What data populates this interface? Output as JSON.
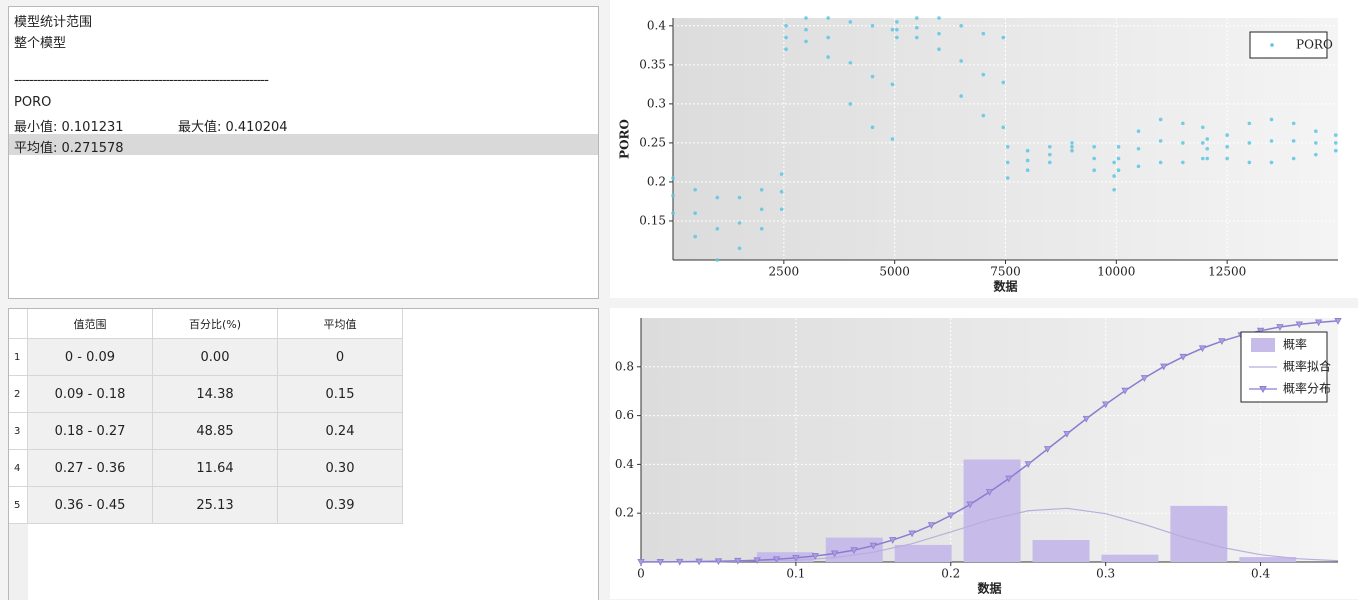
{
  "info": {
    "lines": [
      "模型统计范围",
      "整个模型"
    ],
    "separator": "-------------------------------------------------------------------",
    "property": "PORO",
    "min": "最小值: 0.101231",
    "max": "最大值: 0.410204",
    "mean": "平均值: 0.271578"
  },
  "table": {
    "headers": [
      "值范围",
      "百分比(%)",
      "平均值"
    ],
    "rows": [
      [
        "1",
        "0 - 0.09",
        "0.00",
        "0"
      ],
      [
        "2",
        "0.09 - 0.18",
        "14.38",
        "0.15"
      ],
      [
        "3",
        "0.18 - 0.27",
        "48.85",
        "0.24"
      ],
      [
        "4",
        "0.27 - 0.36",
        "11.64",
        "0.30"
      ],
      [
        "5",
        "0.36 - 0.45",
        "25.13",
        "0.39"
      ]
    ]
  },
  "chart_data": [
    {
      "type": "scatter",
      "xlabel": "数据",
      "ylabel": "PORO",
      "xlim": [
        0,
        15000
      ],
      "ylim": [
        0.1,
        0.41
      ],
      "xticks": [
        2500,
        5000,
        7500,
        10000,
        12500
      ],
      "yticks": [
        0.15,
        0.2,
        0.25,
        0.3,
        0.35,
        0.4
      ],
      "grid": true,
      "legend": "upper right",
      "series": [
        {
          "name": "PORO",
          "color": "#5bc5e3",
          "x": [
            0,
            0,
            0,
            500,
            500,
            500,
            1000,
            1000,
            1000,
            1500,
            1500,
            1500,
            2000,
            2000,
            2000,
            2450,
            2450,
            2450,
            2550,
            2550,
            2550,
            3000,
            3000,
            3000,
            3500,
            3500,
            3500,
            4000,
            4000,
            4000,
            4500,
            4500,
            4500,
            4950,
            4950,
            4950,
            5050,
            5050,
            5050,
            5500,
            5500,
            5500,
            6000,
            6000,
            6000,
            6500,
            6500,
            6500,
            7000,
            7000,
            7000,
            7450,
            7450,
            7450,
            7550,
            7550,
            7550,
            8000,
            8000,
            8000,
            8500,
            8500,
            8500,
            9000,
            9000,
            9000,
            9500,
            9500,
            9500,
            9950,
            9950,
            9950,
            10050,
            10050,
            10050,
            10500,
            10500,
            10500,
            11000,
            11000,
            11000,
            11500,
            11500,
            11500,
            11950,
            11950,
            11950,
            12050,
            12050,
            12050,
            12500,
            12500,
            12500,
            13000,
            13000,
            13000,
            13500,
            13500,
            13500,
            14000,
            14000,
            14000,
            14500,
            14500,
            14500,
            14950,
            14950,
            14950
          ],
          "values": [
            0.205,
            0.1825,
            0.16,
            0.19,
            0.16,
            0.13,
            0.18,
            0.14,
            0.1,
            0.18,
            0.1475,
            0.115,
            0.19,
            0.165,
            0.14,
            0.21,
            0.1875,
            0.165,
            0.4,
            0.385,
            0.37,
            0.41,
            0.395,
            0.38,
            0.41,
            0.385,
            0.36,
            0.405,
            0.3525,
            0.3,
            0.4,
            0.335,
            0.27,
            0.395,
            0.325,
            0.255,
            0.405,
            0.395,
            0.385,
            0.41,
            0.3975,
            0.385,
            0.41,
            0.39,
            0.37,
            0.4,
            0.355,
            0.31,
            0.39,
            0.3375,
            0.285,
            0.385,
            0.3275,
            0.27,
            0.245,
            0.225,
            0.205,
            0.24,
            0.2275,
            0.215,
            0.245,
            0.235,
            0.225,
            0.25,
            0.245,
            0.24,
            0.245,
            0.23,
            0.215,
            0.225,
            0.2075,
            0.19,
            0.245,
            0.23,
            0.215,
            0.265,
            0.2425,
            0.22,
            0.28,
            0.2525,
            0.225,
            0.275,
            0.25,
            0.225,
            0.27,
            0.25,
            0.23,
            0.255,
            0.2425,
            0.23,
            0.26,
            0.245,
            0.23,
            0.275,
            0.25,
            0.225,
            0.28,
            0.2525,
            0.225,
            0.275,
            0.2525,
            0.23,
            0.265,
            0.25,
            0.235,
            0.26,
            0.25,
            0.24
          ]
        }
      ]
    },
    {
      "type": "histogram",
      "xlabel": "数据",
      "xlim": [
        0,
        0.45
      ],
      "ylim": [
        0,
        1
      ],
      "xticks": [
        0,
        0.1,
        0.2,
        0.3,
        0.4
      ],
      "yticks": [
        0.2,
        0.4,
        0.6,
        0.8
      ],
      "grid": true,
      "legend": "upper right",
      "bins": [
        0.0735,
        0.118,
        0.1625,
        0.207,
        0.2515,
        0.296,
        0.3405,
        0.385,
        0.4295
      ],
      "series": [
        {
          "name": "概率",
          "color": "#c6bbe9",
          "values": [
            0.04,
            0.1,
            0.07,
            0.42,
            0.09,
            0.03,
            0.23,
            0.02
          ]
        },
        {
          "name": "概率拟合",
          "type": "line",
          "color": "#b9aedc",
          "x": [
            0,
            0.05,
            0.1,
            0.125,
            0.15,
            0.175,
            0.2,
            0.225,
            0.25,
            0.275,
            0.3,
            0.325,
            0.35,
            0.375,
            0.4,
            0.425,
            0.45
          ],
          "values": [
            0,
            0.0007,
            0.0072,
            0.018,
            0.04,
            0.075,
            0.123,
            0.173,
            0.21,
            0.22,
            0.198,
            0.154,
            0.103,
            0.06,
            0.03,
            0.013,
            0.005
          ]
        },
        {
          "name": "概率分布",
          "type": "line",
          "marker": "triangle-down",
          "color": "#8a7dd0",
          "x": [
            0,
            0.0125,
            0.025,
            0.0375,
            0.05,
            0.0625,
            0.075,
            0.0875,
            0.1,
            0.1125,
            0.125,
            0.1375,
            0.15,
            0.1625,
            0.175,
            0.1875,
            0.2,
            0.2125,
            0.225,
            0.2375,
            0.25,
            0.2625,
            0.275,
            0.2875,
            0.3,
            0.3125,
            0.325,
            0.3375,
            0.35,
            0.3625,
            0.375,
            0.3875,
            0.4,
            0.4125,
            0.425,
            0.4375,
            0.45
          ],
          "values": [
            0.0004,
            0.0006,
            0.0011,
            0.0018,
            0.003,
            0.0048,
            0.0073,
            0.0113,
            0.0168,
            0.0244,
            0.035,
            0.0485,
            0.0668,
            0.09,
            0.117,
            0.151,
            0.191,
            0.236,
            0.287,
            0.342,
            0.401,
            0.463,
            0.525,
            0.587,
            0.646,
            0.702,
            0.754,
            0.801,
            0.841,
            0.876,
            0.905,
            0.929,
            0.948,
            0.963,
            0.974,
            0.982,
            0.988
          ]
        }
      ]
    }
  ]
}
